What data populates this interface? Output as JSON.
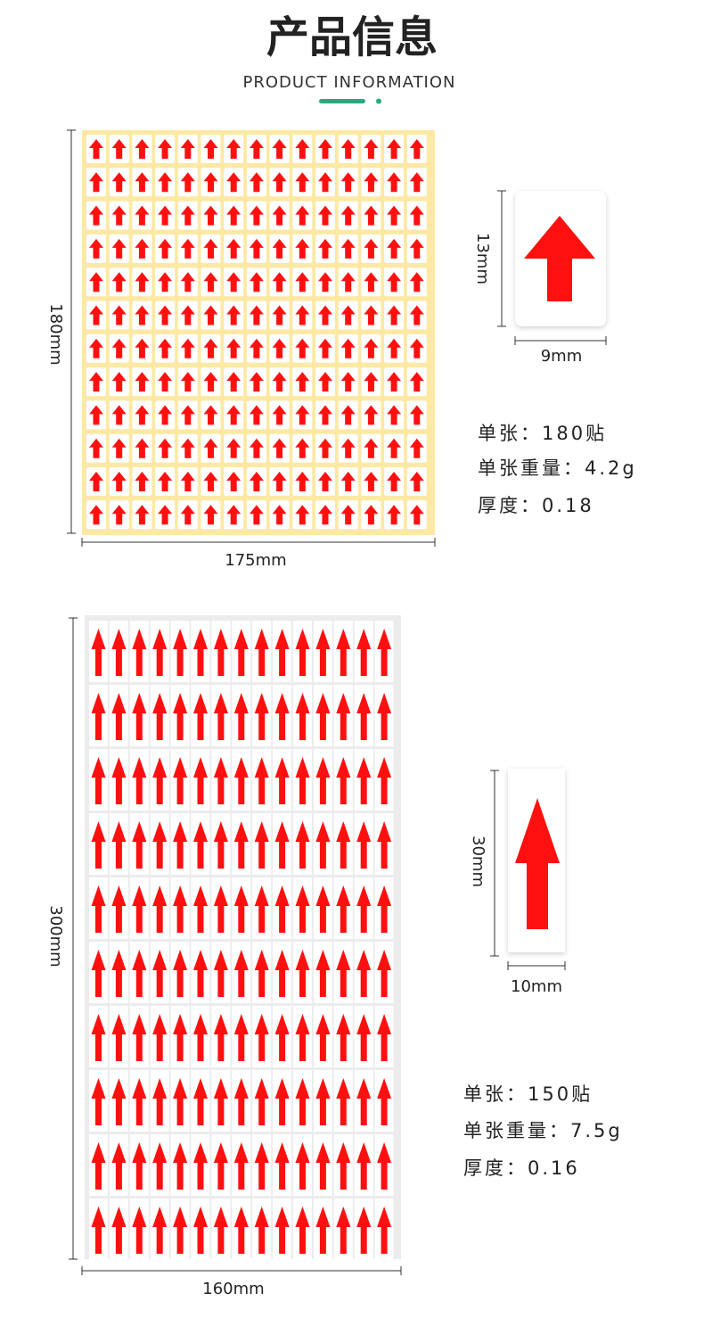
{
  "header": {
    "title": "产品信息",
    "subtitle": "PRODUCT INFORMATION"
  },
  "products": [
    {
      "sheet_height": "180mm",
      "sheet_width": "175mm",
      "label_height": "13mm",
      "label_width": "9mm",
      "specs": [
        "单张：180贴",
        "单张重量：4.2g",
        "厚度：0.18"
      ]
    },
    {
      "sheet_height": "300mm",
      "sheet_width": "160mm",
      "label_height": "30mm",
      "label_width": "10mm",
      "specs": [
        "单张：150贴",
        "单张重量：7.5g",
        "厚度：0.16"
      ]
    }
  ]
}
